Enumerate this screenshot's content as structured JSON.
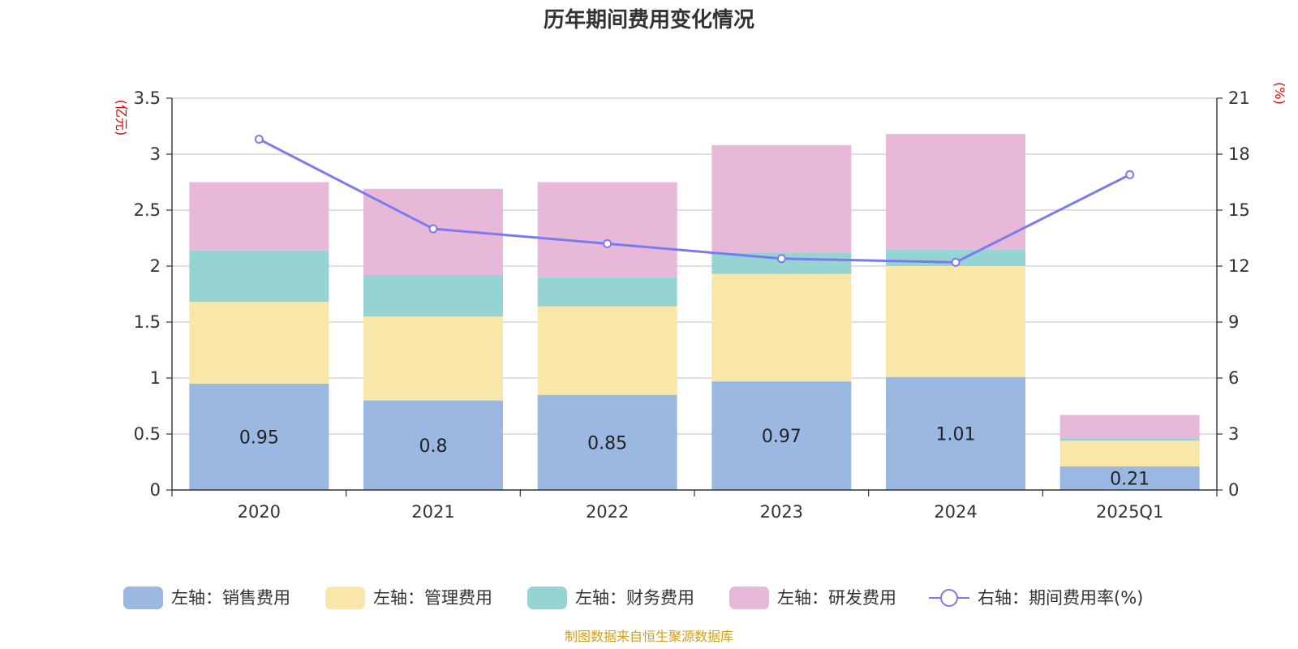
{
  "chart_data": {
    "type": "bar",
    "stacked": true,
    "title": "历年期间费用变化情况",
    "categories": [
      "2020",
      "2021",
      "2022",
      "2023",
      "2024",
      "2025Q1"
    ],
    "left_axis": {
      "unit": "(亿元)",
      "ylim": [
        0,
        3.5
      ],
      "ticks": [
        "0",
        "0.5",
        "1",
        "1.5",
        "2",
        "2.5",
        "3",
        "3.5"
      ]
    },
    "right_axis": {
      "unit": "(%)",
      "ylim": [
        0,
        21
      ],
      "ticks": [
        "0",
        "3",
        "6",
        "9",
        "12",
        "15",
        "18",
        "21"
      ]
    },
    "series": [
      {
        "name": "左轴：销售费用",
        "axis": "left",
        "color": "#9bb8e2",
        "values": [
          0.95,
          0.8,
          0.85,
          0.97,
          1.01,
          0.21
        ],
        "labels": [
          "0.95",
          "0.8",
          "0.85",
          "0.97",
          "1.01",
          "0.21"
        ]
      },
      {
        "name": "左轴：管理费用",
        "axis": "left",
        "color": "#f8e7a8",
        "values": [
          0.73,
          0.75,
          0.79,
          0.96,
          0.99,
          0.23
        ]
      },
      {
        "name": "左轴：财务费用",
        "axis": "left",
        "color": "#96d4d4",
        "values": [
          0.46,
          0.37,
          0.26,
          0.19,
          0.15,
          0.02
        ]
      },
      {
        "name": "左轴：研发费用",
        "axis": "left",
        "color": "#e8b8d9",
        "values": [
          0.61,
          0.77,
          0.85,
          0.96,
          1.03,
          0.21
        ]
      }
    ],
    "line": {
      "name": "右轴：期间费用率(%)",
      "axis": "right",
      "color": "#7b7bef",
      "values": [
        18.8,
        14.0,
        13.2,
        12.4,
        12.2,
        16.9
      ]
    },
    "grid": true,
    "legend_position": "bottom",
    "source": "制图数据来自恒生聚源数据库"
  }
}
